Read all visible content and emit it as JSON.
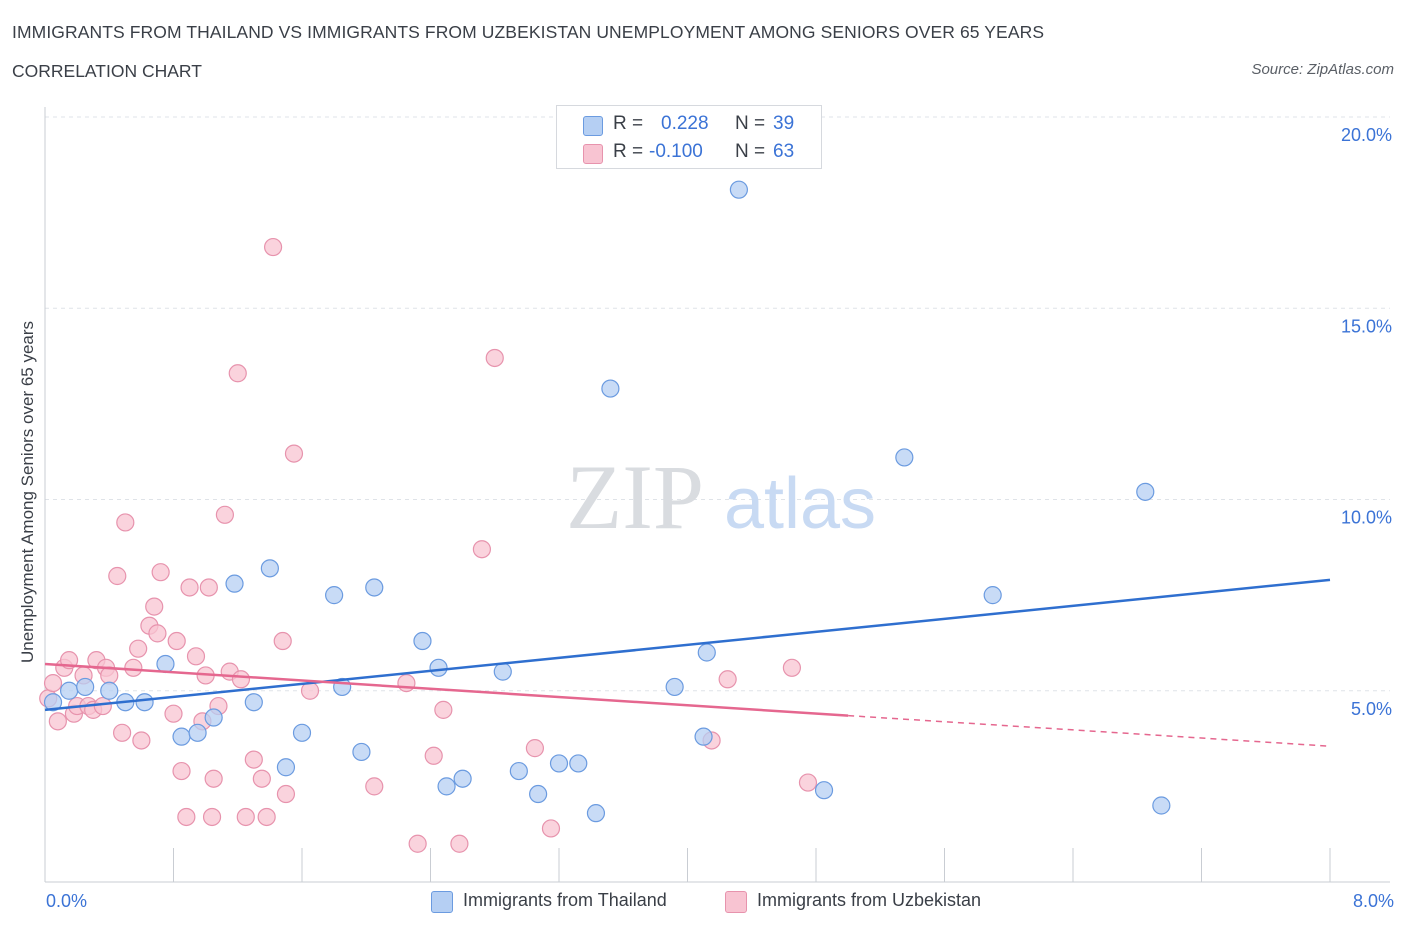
{
  "header": {
    "title": "IMMIGRANTS FROM THAILAND VS IMMIGRANTS FROM UZBEKISTAN UNEMPLOYMENT AMONG SENIORS OVER 65 YEARS",
    "subtitle": "CORRELATION CHART",
    "source": "Source: ZipAtlas.com"
  },
  "legend": {
    "rows": [
      {
        "r_label": "R =",
        "r_value": "0.228",
        "n_label": "N =",
        "n_value": "39"
      },
      {
        "r_label": "R =",
        "r_value": "-0.100",
        "n_label": "N =",
        "n_value": "63"
      }
    ]
  },
  "watermark": {
    "zip": "ZIP",
    "atlas": "atlas"
  },
  "colors": {
    "thailand_fill": "#b5cff3",
    "thailand_stroke": "#6b9be0",
    "thailand_line": "#2f6fcf",
    "uzbek_fill": "#f8c4d2",
    "uzbek_stroke": "#e793ad",
    "uzbek_line": "#e5678f",
    "grid": "#dfe3e8",
    "axis_text": "#3b73d6"
  },
  "chart_data": {
    "type": "scatter",
    "title": "IMMIGRANTS FROM THAILAND VS IMMIGRANTS FROM UZBEKISTAN UNEMPLOYMENT AMONG SENIORS OVER 65 YEARS",
    "xlabel": "",
    "ylabel": "Unemployment Among Seniors over 65 years",
    "xlim": [
      0,
      8
    ],
    "ylim": [
      0,
      20
    ],
    "x_tick_labels": [
      "0.0%",
      "8.0%"
    ],
    "y_tick_labels": [
      "5.0%",
      "10.0%",
      "15.0%",
      "20.0%"
    ],
    "y_ticks": [
      5,
      10,
      15,
      20
    ],
    "grid": true,
    "legend_position": "bottom-center",
    "series": [
      {
        "name": "Immigrants from Thailand",
        "color": "#b5cff3",
        "points": [
          [
            0.05,
            4.7
          ],
          [
            0.15,
            5.0
          ],
          [
            0.25,
            5.1
          ],
          [
            0.4,
            5.0
          ],
          [
            0.5,
            4.7
          ],
          [
            0.62,
            4.7
          ],
          [
            0.75,
            5.7
          ],
          [
            0.85,
            3.8
          ],
          [
            0.95,
            3.9
          ],
          [
            1.05,
            4.3
          ],
          [
            1.18,
            7.8
          ],
          [
            1.3,
            4.7
          ],
          [
            1.4,
            8.2
          ],
          [
            1.5,
            3.0
          ],
          [
            1.6,
            3.9
          ],
          [
            1.8,
            7.5
          ],
          [
            1.85,
            5.1
          ],
          [
            1.97,
            3.4
          ],
          [
            2.05,
            7.7
          ],
          [
            2.35,
            6.3
          ],
          [
            2.45,
            5.6
          ],
          [
            2.5,
            2.5
          ],
          [
            2.6,
            2.7
          ],
          [
            2.85,
            5.5
          ],
          [
            2.95,
            2.9
          ],
          [
            3.07,
            2.3
          ],
          [
            3.2,
            3.1
          ],
          [
            3.32,
            3.1
          ],
          [
            3.43,
            1.8
          ],
          [
            3.52,
            12.9
          ],
          [
            3.92,
            5.1
          ],
          [
            4.1,
            3.8
          ],
          [
            4.12,
            6.0
          ],
          [
            4.32,
            18.1
          ],
          [
            4.85,
            2.4
          ],
          [
            5.35,
            11.1
          ],
          [
            5.9,
            7.5
          ],
          [
            6.85,
            10.2
          ],
          [
            6.95,
            2.0
          ]
        ],
        "trend": {
          "x": [
            0.0,
            8.0
          ],
          "y": [
            4.5,
            7.9
          ]
        }
      },
      {
        "name": "Immigrants from Uzbekistan",
        "color": "#f8c4d2",
        "points": [
          [
            0.02,
            4.8
          ],
          [
            0.05,
            5.2
          ],
          [
            0.08,
            4.2
          ],
          [
            0.12,
            5.6
          ],
          [
            0.15,
            5.8
          ],
          [
            0.18,
            4.4
          ],
          [
            0.2,
            4.6
          ],
          [
            0.24,
            5.4
          ],
          [
            0.27,
            4.6
          ],
          [
            0.3,
            4.5
          ],
          [
            0.32,
            5.8
          ],
          [
            0.36,
            4.6
          ],
          [
            0.38,
            5.6
          ],
          [
            0.4,
            5.4
          ],
          [
            0.45,
            8.0
          ],
          [
            0.48,
            3.9
          ],
          [
            0.5,
            9.4
          ],
          [
            0.55,
            5.6
          ],
          [
            0.58,
            6.1
          ],
          [
            0.6,
            3.7
          ],
          [
            0.65,
            6.7
          ],
          [
            0.68,
            7.2
          ],
          [
            0.7,
            6.5
          ],
          [
            0.72,
            8.1
          ],
          [
            0.8,
            4.4
          ],
          [
            0.82,
            6.3
          ],
          [
            0.85,
            2.9
          ],
          [
            0.88,
            1.7
          ],
          [
            0.9,
            7.7
          ],
          [
            0.94,
            5.9
          ],
          [
            0.98,
            4.2
          ],
          [
            1.0,
            5.4
          ],
          [
            1.02,
            7.7
          ],
          [
            1.04,
            1.7
          ],
          [
            1.05,
            2.7
          ],
          [
            1.08,
            4.6
          ],
          [
            1.12,
            9.6
          ],
          [
            1.15,
            5.5
          ],
          [
            1.2,
            13.3
          ],
          [
            1.22,
            5.3
          ],
          [
            1.25,
            1.7
          ],
          [
            1.3,
            3.2
          ],
          [
            1.35,
            2.7
          ],
          [
            1.38,
            1.7
          ],
          [
            1.42,
            16.6
          ],
          [
            1.48,
            6.3
          ],
          [
            1.5,
            2.3
          ],
          [
            1.55,
            11.2
          ],
          [
            1.65,
            5.0
          ],
          [
            2.05,
            2.5
          ],
          [
            2.25,
            5.2
          ],
          [
            2.32,
            1.0
          ],
          [
            2.42,
            3.3
          ],
          [
            2.48,
            4.5
          ],
          [
            2.58,
            1.0
          ],
          [
            2.72,
            8.7
          ],
          [
            2.8,
            13.7
          ],
          [
            3.05,
            3.5
          ],
          [
            3.15,
            1.4
          ],
          [
            4.15,
            3.7
          ],
          [
            4.25,
            5.3
          ],
          [
            4.65,
            5.6
          ],
          [
            4.75,
            2.6
          ]
        ],
        "trend": {
          "x": [
            0.0,
            5.0
          ],
          "y": [
            5.7,
            4.35
          ]
        },
        "trend_extension": {
          "x": [
            5.0,
            8.0
          ],
          "y": [
            4.35,
            3.55
          ]
        }
      }
    ]
  }
}
